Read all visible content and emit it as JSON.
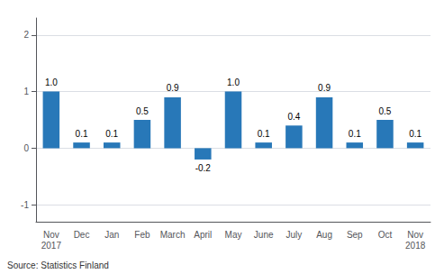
{
  "chart_data": {
    "type": "bar",
    "categories": [
      "Nov\n2017",
      "Dec",
      "Jan",
      "Feb",
      "March",
      "April",
      "May",
      "June",
      "July",
      "Aug",
      "Sep",
      "Oct",
      "Nov\n2018"
    ],
    "values": [
      1.0,
      0.1,
      0.1,
      0.5,
      0.9,
      -0.2,
      1.0,
      0.1,
      0.4,
      0.9,
      0.1,
      0.5,
      0.1
    ],
    "value_labels": [
      "1.0",
      "0.1",
      "0.1",
      "0.5",
      "0.9",
      "-0.2",
      "1.0",
      "0.1",
      "0.4",
      "0.9",
      "0.1",
      "0.5",
      "0.1"
    ],
    "data_labels": true,
    "color": "#2878b8",
    "ylim": [
      -1.3,
      2.3
    ],
    "yticks": [
      -1,
      0,
      1,
      2
    ],
    "grid": true,
    "annotation": "Source: Statistics Finland"
  }
}
